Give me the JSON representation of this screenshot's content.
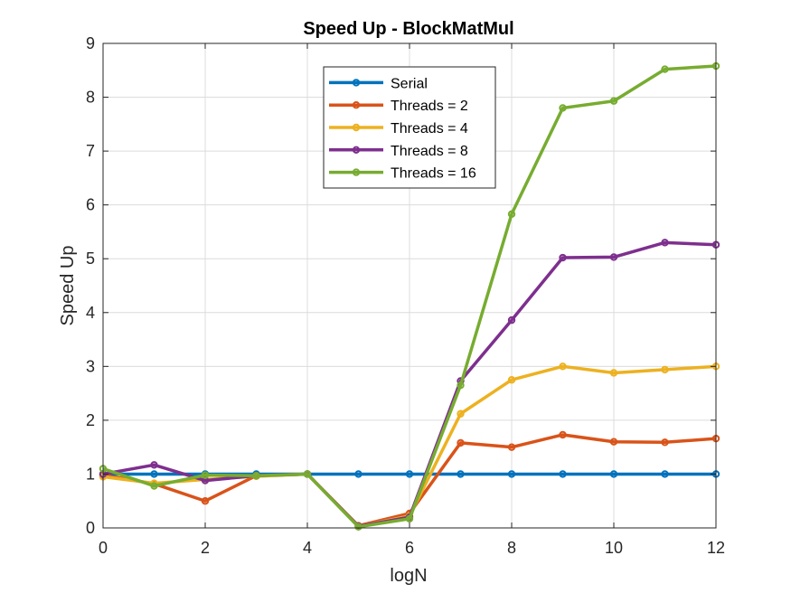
{
  "chart_data": {
    "type": "line",
    "title": "Speed Up - BlockMatMul",
    "xlabel": "logN",
    "ylabel": "Speed Up",
    "xlim": [
      0,
      12
    ],
    "ylim": [
      0,
      9
    ],
    "xticks": [
      0,
      2,
      4,
      6,
      8,
      10,
      12
    ],
    "yticks": [
      0,
      1,
      2,
      3,
      4,
      5,
      6,
      7,
      8,
      9
    ],
    "grid": true,
    "legend_position": "top-center",
    "x": [
      0,
      1,
      2,
      3,
      4,
      5,
      6,
      7,
      8,
      9,
      10,
      11,
      12
    ],
    "series": [
      {
        "name": "Serial",
        "color": "#0072BD",
        "values": [
          1,
          1,
          1,
          1,
          1,
          1,
          1,
          1,
          1,
          1,
          1,
          1,
          1
        ]
      },
      {
        "name": "Threads = 2",
        "color": "#D95319",
        "values": [
          0.98,
          0.82,
          0.5,
          0.97,
          1.0,
          0.04,
          0.27,
          1.58,
          1.5,
          1.73,
          1.6,
          1.59,
          1.66
        ]
      },
      {
        "name": "Threads = 4",
        "color": "#EDB120",
        "values": [
          0.95,
          0.83,
          0.9,
          0.96,
          1.0,
          0.03,
          0.22,
          2.12,
          2.75,
          3.0,
          2.88,
          2.94,
          3.0
        ]
      },
      {
        "name": "Threads = 8",
        "color": "#7E2F8E",
        "values": [
          1.0,
          1.17,
          0.88,
          0.97,
          1.0,
          0.03,
          0.2,
          2.73,
          3.86,
          5.02,
          5.03,
          5.3,
          5.26
        ]
      },
      {
        "name": "Threads = 16",
        "color": "#77AC30",
        "values": [
          1.1,
          0.78,
          0.98,
          0.97,
          1.0,
          0.02,
          0.17,
          2.65,
          5.83,
          7.8,
          7.93,
          8.52,
          8.58
        ]
      }
    ]
  }
}
